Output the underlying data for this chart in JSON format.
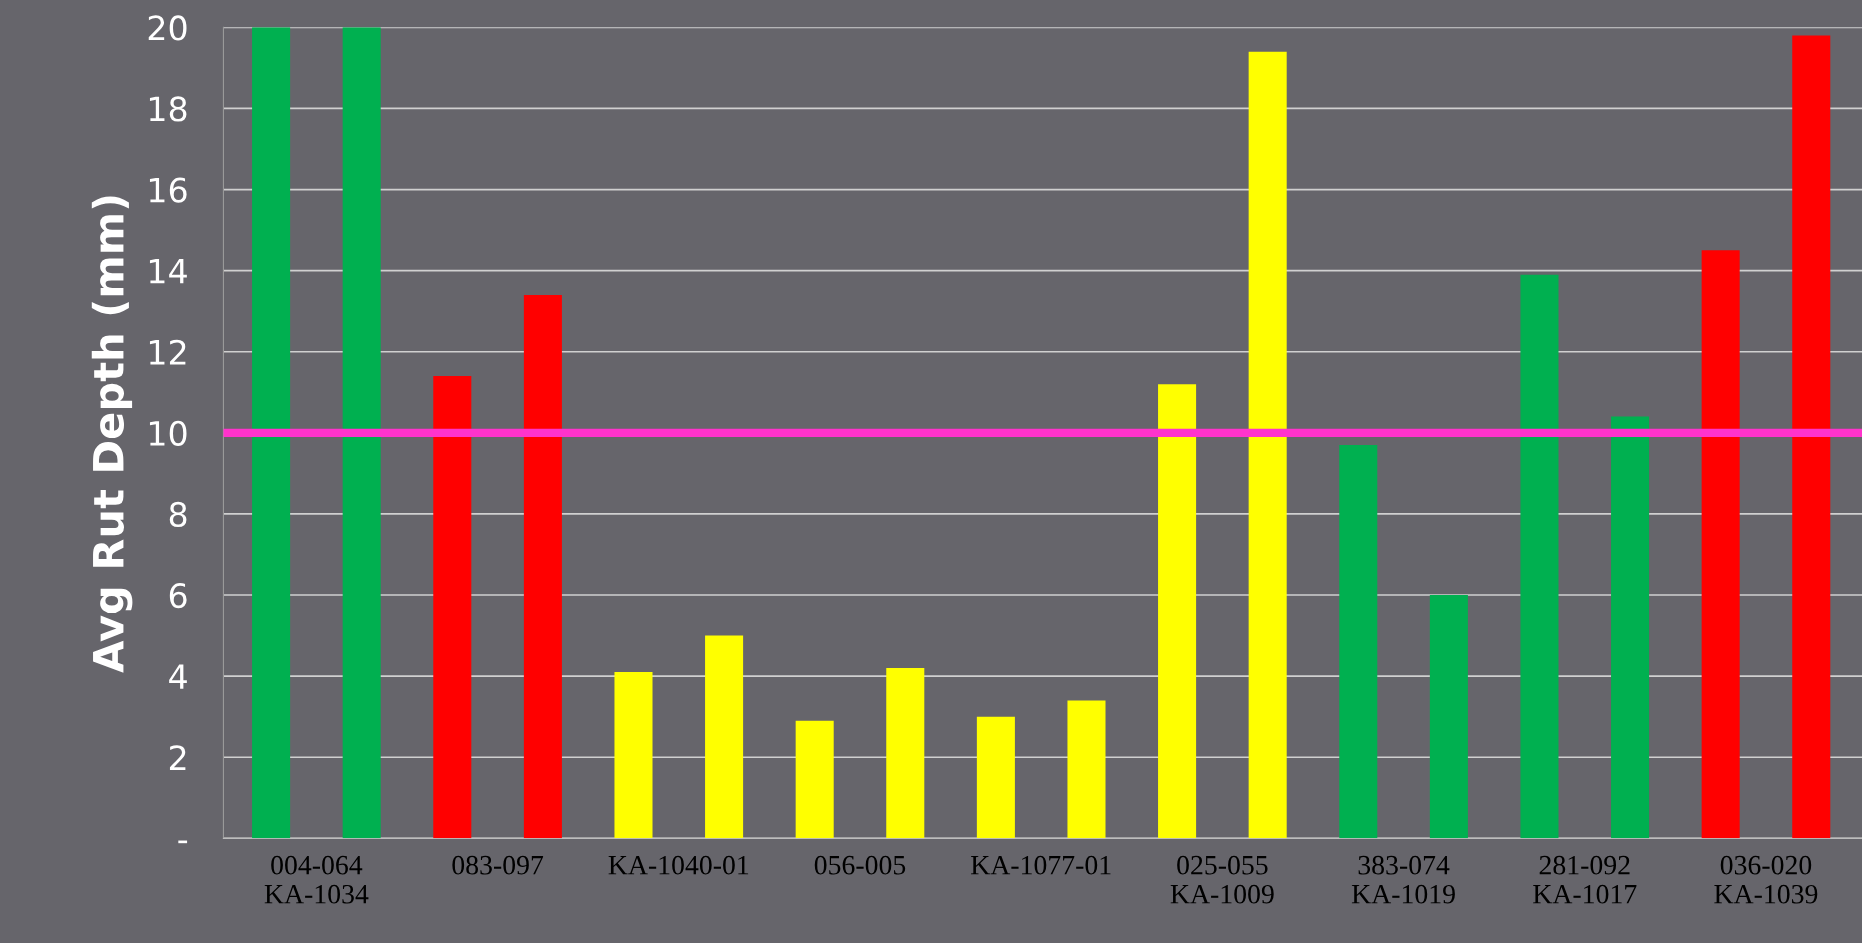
{
  "chart_data": {
    "type": "bar",
    "ylabel": "Avg Rut Depth (mm)",
    "categories": [
      "004-064\nKA-1034",
      "083-097",
      "KA-1040-01",
      "056-005",
      "KA-1077-01",
      "025-055\nKA-1009",
      "383-074\nKA-1019",
      "281-092\nKA-1017",
      "036-020\nKA-1039"
    ],
    "series": [
      {
        "values": [
          20,
          11.4,
          4.1,
          2.9,
          3.0,
          11.2,
          9.7,
          13.9,
          14.5
        ],
        "colors": [
          "#00b050",
          "#ff0000",
          "#ffff00",
          "#ffff00",
          "#ffff00",
          "#ffff00",
          "#00b050",
          "#00b050",
          "#ff0000"
        ]
      },
      {
        "values": [
          20,
          13.4,
          5.0,
          4.2,
          3.4,
          19.4,
          6.0,
          10.4,
          19.8
        ],
        "colors": [
          "#00b050",
          "#ff0000",
          "#ffff00",
          "#ffff00",
          "#ffff00",
          "#ffff00",
          "#00b050",
          "#00b050",
          "#ff0000"
        ]
      }
    ],
    "ylim": [
      0,
      20
    ],
    "yticks": [
      {
        "value": 0,
        "label": "-"
      },
      2,
      4,
      6,
      8,
      10,
      12,
      14,
      16,
      18,
      20
    ],
    "grid": "y",
    "ref_lines": [
      {
        "axis": "y",
        "value": 10,
        "color": "#ff33cc"
      }
    ]
  }
}
